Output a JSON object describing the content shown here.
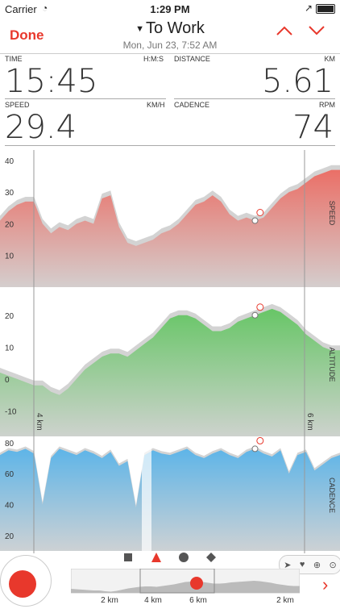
{
  "status_bar": {
    "carrier": "Carrier",
    "time": "1:29 PM"
  },
  "nav": {
    "done_label": "Done",
    "title": "To Work",
    "subtitle": "Mon, Jun 23, 7:52 AM",
    "up_icon": "chevron-up-icon",
    "down_icon": "chevron-down-icon"
  },
  "metrics": {
    "time": {
      "label": "TIME",
      "unit": "H:M:S",
      "value": "15:45"
    },
    "distance": {
      "label": "DISTANCE",
      "unit": "KM",
      "value": "5.61"
    },
    "speed": {
      "label": "SPEED",
      "unit": "KM/H",
      "value": "29.4"
    },
    "cadence": {
      "label": "CADENCE",
      "unit": "RPM",
      "value": "74"
    }
  },
  "chart_data": [
    {
      "type": "area",
      "ylabel": "SPEED",
      "color": "#ec6a61",
      "y_ticks": [
        "40",
        "30",
        "20",
        "10"
      ],
      "ylim": [
        0,
        42
      ],
      "x": [
        0,
        1,
        2,
        3,
        4,
        5,
        6,
        7,
        8,
        9,
        10,
        11,
        12,
        13,
        14,
        15,
        16,
        17,
        18,
        19,
        20,
        21,
        22,
        23,
        24,
        25,
        26,
        27,
        28,
        29,
        30,
        31,
        32,
        33,
        34,
        35,
        36,
        37,
        38,
        39,
        40
      ],
      "values": [
        21,
        24,
        26,
        27,
        27,
        20,
        17,
        19,
        18,
        20,
        21,
        20,
        28,
        29,
        19,
        14,
        13,
        14,
        15,
        17,
        18,
        20,
        23,
        26,
        27,
        29,
        27,
        23,
        21,
        22,
        21,
        22,
        25,
        28,
        30,
        31,
        33,
        35,
        36,
        37,
        37
      ]
    },
    {
      "type": "area",
      "ylabel": "ALTITUDE",
      "color": "#62c561",
      "y_ticks": [
        "20",
        "10",
        "0",
        "-10"
      ],
      "ylim": [
        -18,
        25
      ],
      "x": [
        0,
        1,
        2,
        3,
        4,
        5,
        6,
        7,
        8,
        9,
        10,
        11,
        12,
        13,
        14,
        15,
        16,
        17,
        18,
        19,
        20,
        21,
        22,
        23,
        24,
        25,
        26,
        27,
        28,
        29,
        30,
        31,
        32,
        33,
        34,
        35,
        36,
        37,
        38,
        39,
        40
      ],
      "values": [
        2,
        1,
        0,
        -1,
        -2,
        -2,
        -4,
        -5,
        -3,
        0,
        3,
        5,
        7,
        8,
        8,
        7,
        9,
        11,
        13,
        16,
        19,
        20,
        20,
        19,
        17,
        15,
        15,
        16,
        18,
        19,
        20,
        21,
        22,
        21,
        19,
        17,
        14,
        12,
        10,
        9,
        9
      ]
    },
    {
      "type": "area",
      "ylabel": "CADENCE",
      "color": "#58b3e9",
      "y_ticks": [
        "80",
        "60",
        "40",
        "20"
      ],
      "ylim": [
        10,
        83
      ],
      "x": [
        0,
        1,
        2,
        3,
        4,
        5,
        6,
        7,
        8,
        9,
        10,
        11,
        12,
        13,
        14,
        15,
        16,
        17,
        18,
        19,
        20,
        21,
        22,
        23,
        24,
        25,
        26,
        27,
        28,
        29,
        30,
        31,
        32,
        33,
        34,
        35,
        36,
        37,
        38,
        39,
        40
      ],
      "values": [
        72,
        75,
        74,
        76,
        73,
        40,
        70,
        76,
        74,
        72,
        75,
        73,
        70,
        74,
        65,
        68,
        38,
        72,
        75,
        73,
        72,
        74,
        76,
        72,
        70,
        73,
        75,
        72,
        70,
        74,
        76,
        73,
        71,
        75,
        60,
        72,
        74,
        62,
        66,
        70,
        72
      ]
    }
  ],
  "chart_axis": {
    "km_left": "4 km",
    "km_right": "6 km"
  },
  "controls": {
    "square_icon": "square-icon",
    "triangle_icon": "triangle-icon",
    "circle_icon": "circle-icon",
    "diamond_icon": "diamond-icon"
  },
  "mini_axis": [
    "2 km",
    "4 km",
    "6 km",
    "2 km"
  ]
}
